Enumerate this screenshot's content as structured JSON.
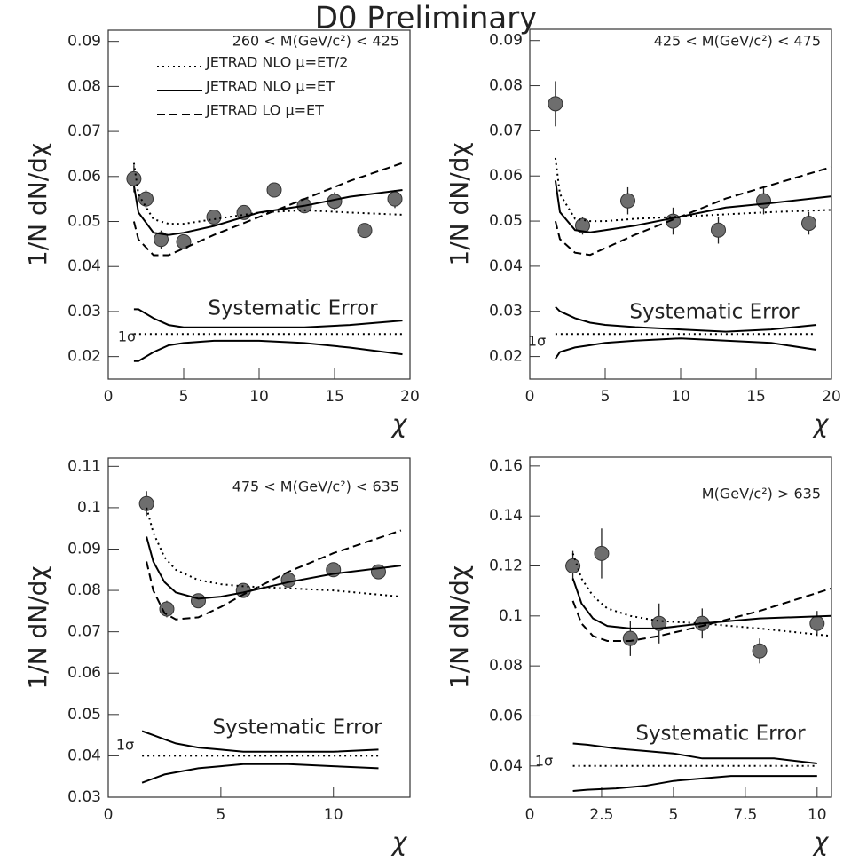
{
  "title": "D0 Preliminary",
  "chart_data": [
    {
      "type": "scatter",
      "annotations": [
        "260 < M(GeV/c²) < 425",
        "Systematic Error",
        "1σ"
      ],
      "x_label": "χ",
      "y_label": "1/N dN/dχ",
      "legend": "upper left",
      "xlim": [
        0,
        20
      ],
      "ylim": [
        0.015,
        0.0925
      ],
      "xticks": [
        0,
        5,
        10,
        15,
        20
      ],
      "yticks": [
        0.02,
        0.03,
        0.04,
        0.05,
        0.06,
        0.07,
        0.08,
        0.09
      ],
      "series": [
        {
          "style": "points",
          "color": "#6e6e6e",
          "x": [
            1.7,
            2.5,
            3.5,
            5,
            7,
            9,
            11,
            13,
            15,
            17,
            19
          ],
          "values": [
            0.0595,
            0.055,
            0.046,
            0.0455,
            0.051,
            0.052,
            0.057,
            0.0535,
            0.0545,
            0.048,
            0.055
          ],
          "errors": [
            0.003,
            0.002,
            0.002,
            0.0015,
            0.0015,
            0.0015,
            0.0015,
            0.0015,
            0.002,
            0.0015,
            0.002
          ]
        },
        {
          "name": "JETRAD NLO μ=ET/2",
          "style": "dotted",
          "color": "#000000",
          "x": [
            1.7,
            2,
            3,
            4,
            5,
            7,
            10,
            13,
            16,
            19.5
          ],
          "values": [
            0.063,
            0.056,
            0.0505,
            0.0495,
            0.0495,
            0.0505,
            0.052,
            0.0525,
            0.052,
            0.0515
          ]
        },
        {
          "name": "JETRAD NLO μ=ET",
          "style": "solid",
          "color": "#000000",
          "x": [
            1.7,
            2,
            3,
            4,
            5,
            7,
            10,
            13,
            16,
            19.5
          ],
          "values": [
            0.058,
            0.052,
            0.0475,
            0.047,
            0.0475,
            0.049,
            0.052,
            0.0535,
            0.0555,
            0.057
          ]
        },
        {
          "name": "JETRAD LO μ=ET",
          "style": "dashed",
          "color": "#000000",
          "x": [
            1.7,
            2,
            3,
            4,
            5,
            7,
            10,
            13,
            16,
            19.5
          ],
          "values": [
            0.05,
            0.046,
            0.0425,
            0.0425,
            0.044,
            0.047,
            0.051,
            0.055,
            0.059,
            0.063
          ]
        },
        {
          "style": "solid",
          "color": "#000000",
          "x": [
            1.7,
            2,
            3,
            4,
            5,
            7,
            10,
            13,
            16,
            19.5
          ],
          "values": [
            0.0305,
            0.0305,
            0.0285,
            0.027,
            0.0265,
            0.0265,
            0.0265,
            0.0265,
            0.027,
            0.028
          ]
        },
        {
          "style": "dotted",
          "color": "#000000",
          "x": [
            1.7,
            19.5
          ],
          "values": [
            0.025,
            0.025
          ]
        },
        {
          "style": "solid",
          "color": "#000000",
          "x": [
            1.7,
            2,
            3,
            4,
            5,
            7,
            10,
            13,
            16,
            19.5
          ],
          "values": [
            0.019,
            0.019,
            0.021,
            0.0225,
            0.023,
            0.0235,
            0.0235,
            0.023,
            0.022,
            0.0205
          ]
        }
      ]
    },
    {
      "type": "scatter",
      "annotations": [
        "425 < M(GeV/c²) < 475",
        "Systematic Error",
        "1σ"
      ],
      "x_label": "χ",
      "y_label": "1/N dN/dχ",
      "xlim": [
        0,
        20
      ],
      "ylim": [
        0.015,
        0.0925
      ],
      "xticks": [
        0,
        5,
        10,
        15,
        20
      ],
      "yticks": [
        0.02,
        0.03,
        0.04,
        0.05,
        0.06,
        0.07,
        0.08,
        0.09
      ],
      "series": [
        {
          "style": "points",
          "color": "#6e6e6e",
          "x": [
            1.7,
            3.5,
            6.5,
            9.5,
            12.5,
            15.5,
            18.5
          ],
          "values": [
            0.076,
            0.049,
            0.0545,
            0.05,
            0.048,
            0.0545,
            0.0495
          ],
          "errors": [
            0.005,
            0.002,
            0.003,
            0.003,
            0.003,
            0.003,
            0.0025
          ]
        },
        {
          "style": "dotted",
          "color": "#000000",
          "x": [
            1.7,
            2,
            3,
            4,
            5,
            7,
            10,
            13,
            16,
            20
          ],
          "values": [
            0.064,
            0.056,
            0.0505,
            0.05,
            0.05,
            0.0505,
            0.051,
            0.0515,
            0.052,
            0.0525
          ]
        },
        {
          "style": "solid",
          "color": "#000000",
          "x": [
            1.7,
            2,
            3,
            4,
            5,
            7,
            10,
            13,
            16,
            20
          ],
          "values": [
            0.059,
            0.052,
            0.048,
            0.0475,
            0.048,
            0.049,
            0.051,
            0.053,
            0.054,
            0.0555
          ]
        },
        {
          "style": "dashed",
          "color": "#000000",
          "x": [
            1.7,
            2,
            3,
            4,
            5,
            7,
            10,
            13,
            16,
            20
          ],
          "values": [
            0.05,
            0.046,
            0.043,
            0.0425,
            0.044,
            0.047,
            0.051,
            0.055,
            0.058,
            0.062
          ]
        },
        {
          "style": "solid",
          "color": "#000000",
          "x": [
            1.7,
            2,
            3,
            4,
            5,
            7,
            10,
            13,
            16,
            19
          ],
          "values": [
            0.031,
            0.03,
            0.0285,
            0.0275,
            0.027,
            0.0265,
            0.026,
            0.0255,
            0.026,
            0.027
          ]
        },
        {
          "style": "dotted",
          "color": "#000000",
          "x": [
            1.7,
            19
          ],
          "values": [
            0.025,
            0.025
          ]
        },
        {
          "style": "solid",
          "color": "#000000",
          "x": [
            1.7,
            2,
            3,
            4,
            5,
            7,
            10,
            13,
            16,
            19
          ],
          "values": [
            0.0195,
            0.021,
            0.022,
            0.0225,
            0.023,
            0.0235,
            0.024,
            0.0235,
            0.023,
            0.0215
          ]
        }
      ]
    },
    {
      "type": "scatter",
      "annotations": [
        "475 < M(GeV/c²) < 635",
        "Systematic Error",
        "1σ"
      ],
      "x_label": "χ",
      "y_label": "1/N dN/dχ",
      "xlim": [
        0,
        13.4
      ],
      "ylim": [
        0.03,
        0.112
      ],
      "xticks": [
        0,
        5,
        10
      ],
      "yticks": [
        0.03,
        0.04,
        0.05,
        0.06,
        0.07,
        0.08,
        0.09,
        0.1,
        0.11
      ],
      "series": [
        {
          "style": "points",
          "color": "#6e6e6e",
          "x": [
            1.7,
            2.6,
            4,
            6,
            8,
            10,
            12
          ],
          "values": [
            0.101,
            0.0755,
            0.0775,
            0.08,
            0.0825,
            0.085,
            0.0845
          ],
          "errors": [
            0.003,
            0.002,
            0.0015,
            0.0015,
            0.0015,
            0.0015,
            0.0015
          ]
        },
        {
          "style": "dotted",
          "color": "#000000",
          "x": [
            1.7,
            2,
            2.5,
            3,
            4,
            5,
            6,
            8,
            10,
            13
          ],
          "values": [
            0.1,
            0.094,
            0.088,
            0.085,
            0.0825,
            0.0815,
            0.081,
            0.0805,
            0.08,
            0.0785
          ]
        },
        {
          "style": "solid",
          "color": "#000000",
          "x": [
            1.7,
            2,
            2.5,
            3,
            4,
            5,
            6,
            8,
            10,
            13
          ],
          "values": [
            0.093,
            0.087,
            0.082,
            0.0795,
            0.078,
            0.0785,
            0.0795,
            0.082,
            0.084,
            0.086
          ]
        },
        {
          "style": "dashed",
          "color": "#000000",
          "x": [
            1.7,
            2,
            2.5,
            3,
            4,
            5,
            6,
            8,
            10,
            13
          ],
          "values": [
            0.087,
            0.08,
            0.0745,
            0.073,
            0.0735,
            0.076,
            0.079,
            0.0845,
            0.089,
            0.0945
          ]
        },
        {
          "style": "solid",
          "color": "#000000",
          "x": [
            1.5,
            2,
            2.5,
            3,
            4,
            5,
            6,
            8,
            10,
            12
          ],
          "values": [
            0.046,
            0.045,
            0.044,
            0.043,
            0.042,
            0.0415,
            0.041,
            0.041,
            0.041,
            0.0415
          ]
        },
        {
          "style": "dotted",
          "color": "#000000",
          "x": [
            1.5,
            12
          ],
          "values": [
            0.04,
            0.04
          ]
        },
        {
          "style": "solid",
          "color": "#000000",
          "x": [
            1.5,
            2,
            2.5,
            3,
            4,
            5,
            6,
            8,
            10,
            12
          ],
          "values": [
            0.0335,
            0.0345,
            0.0355,
            0.036,
            0.037,
            0.0375,
            0.038,
            0.038,
            0.0375,
            0.037
          ]
        }
      ]
    },
    {
      "type": "scatter",
      "annotations": [
        "M(GeV/c²) > 635",
        "Systematic Error",
        "1σ"
      ],
      "x_label": "χ",
      "y_label": "1/N dN/dχ",
      "xlim": [
        0,
        10.5
      ],
      "ylim": [
        0.0275,
        0.1635
      ],
      "xticks": [
        0,
        2.5,
        5,
        7.5,
        10
      ],
      "yticks": [
        0.04,
        0.06,
        0.08,
        0.1,
        0.12,
        0.14,
        0.16
      ],
      "series": [
        {
          "style": "points",
          "color": "#6e6e6e",
          "x": [
            1.5,
            2.5,
            3.5,
            4.5,
            6,
            8,
            10
          ],
          "values": [
            0.12,
            0.125,
            0.091,
            0.097,
            0.097,
            0.086,
            0.097
          ],
          "errors": [
            0.006,
            0.01,
            0.007,
            0.008,
            0.006,
            0.005,
            0.005
          ]
        },
        {
          "style": "dotted",
          "color": "#000000",
          "x": [
            1.5,
            1.8,
            2.2,
            2.7,
            3.5,
            4.5,
            6,
            8,
            10.5
          ],
          "values": [
            0.125,
            0.115,
            0.108,
            0.103,
            0.1,
            0.098,
            0.097,
            0.095,
            0.092
          ]
        },
        {
          "style": "solid",
          "color": "#000000",
          "x": [
            1.5,
            1.8,
            2.2,
            2.7,
            3.5,
            4.5,
            6,
            8,
            10.5
          ],
          "values": [
            0.115,
            0.105,
            0.099,
            0.096,
            0.095,
            0.095,
            0.097,
            0.099,
            0.1
          ]
        },
        {
          "style": "dashed",
          "color": "#000000",
          "x": [
            1.5,
            1.8,
            2.2,
            2.7,
            3.5,
            4.5,
            6,
            8,
            10.5
          ],
          "values": [
            0.106,
            0.097,
            0.092,
            0.09,
            0.09,
            0.092,
            0.096,
            0.102,
            0.111
          ]
        },
        {
          "style": "solid",
          "color": "#000000",
          "x": [
            1.5,
            2,
            3,
            4,
            5,
            6,
            7,
            8.5,
            10
          ],
          "values": [
            0.049,
            0.0485,
            0.047,
            0.046,
            0.045,
            0.043,
            0.043,
            0.043,
            0.041
          ]
        },
        {
          "style": "dotted",
          "color": "#000000",
          "x": [
            1.5,
            10
          ],
          "values": [
            0.04,
            0.04
          ]
        },
        {
          "style": "solid",
          "color": "#000000",
          "x": [
            1.5,
            2,
            3,
            4,
            5,
            6,
            7,
            8.5,
            10
          ],
          "values": [
            0.03,
            0.0305,
            0.031,
            0.032,
            0.034,
            0.035,
            0.036,
            0.036,
            0.036
          ]
        }
      ]
    }
  ]
}
